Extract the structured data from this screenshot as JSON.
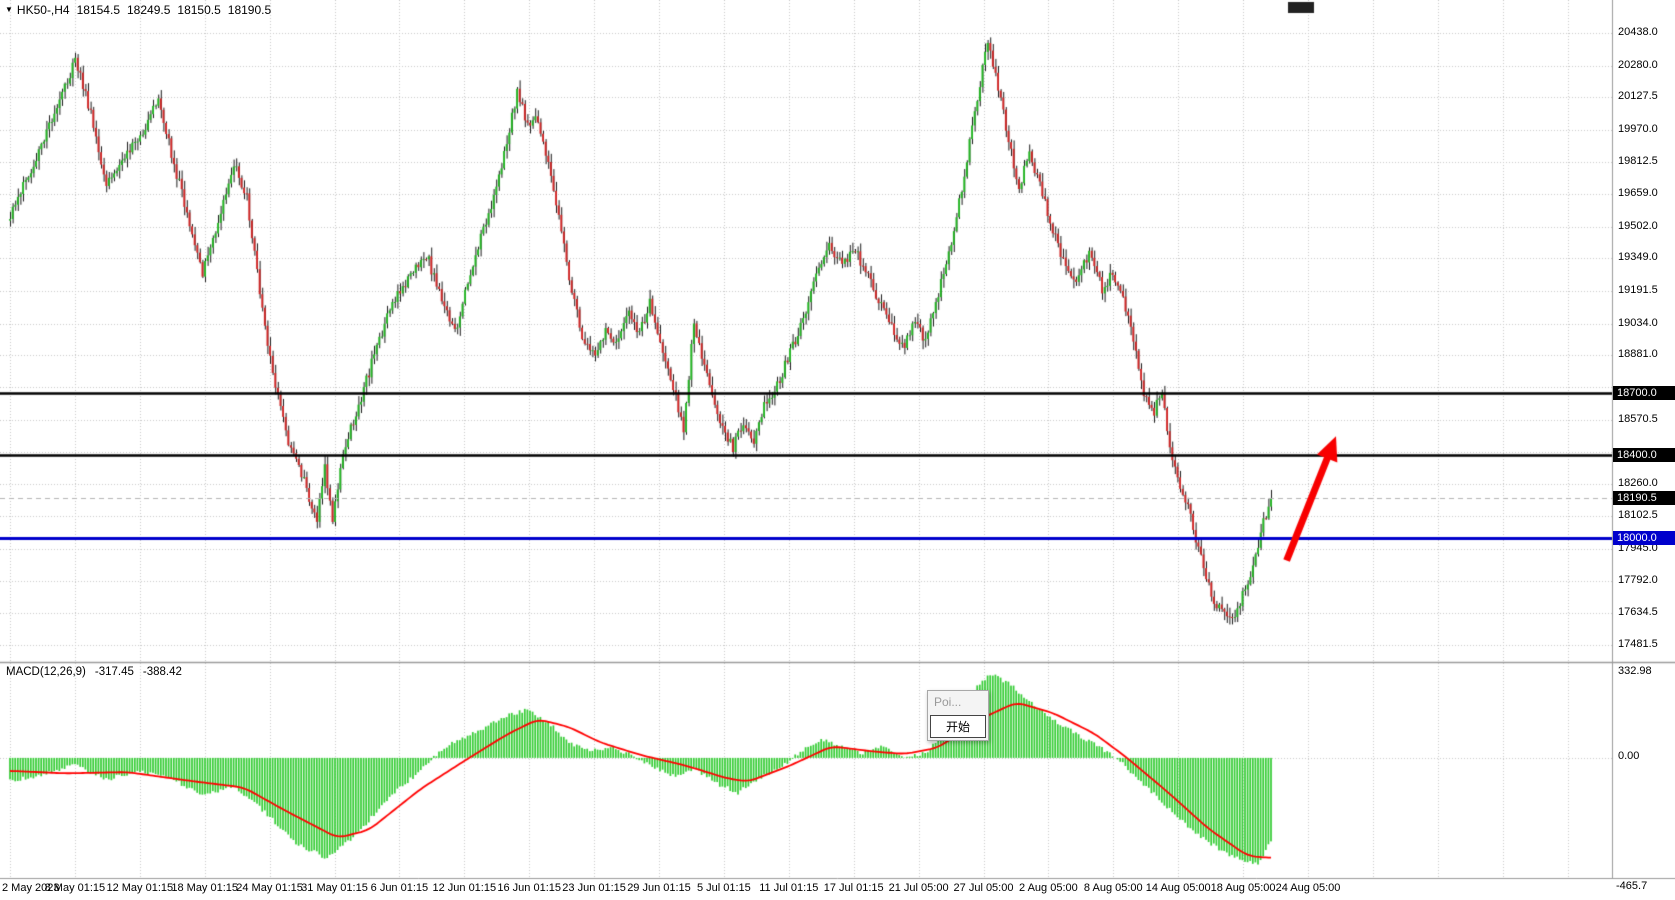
{
  "header": {
    "dropdown_icon": "▼",
    "title": "HK50-,H4",
    "open": "18154.5",
    "high": "18249.5",
    "low": "18150.5",
    "close": "18190.5"
  },
  "popup": {
    "line1": "Poi...",
    "button": "开始"
  },
  "macd_panel": {
    "label": "MACD(12,26,9)",
    "main_value": "-317.45",
    "signal_value": "-388.42",
    "scale": [
      "332.98",
      "0.00",
      "-465.7"
    ]
  },
  "price_axis": {
    "labels": [
      {
        "p": 20438.0,
        "t": "20438.0"
      },
      {
        "p": 20280.0,
        "t": "20280.0"
      },
      {
        "p": 20127.5,
        "t": "20127.5"
      },
      {
        "p": 19970.0,
        "t": "19970.0"
      },
      {
        "p": 19812.5,
        "t": "19812.5"
      },
      {
        "p": 19659.0,
        "t": "19659.0"
      },
      {
        "p": 19502.0,
        "t": "19502.0"
      },
      {
        "p": 19349.0,
        "t": "19349.0"
      },
      {
        "p": 19191.5,
        "t": "19191.5"
      },
      {
        "p": 19034.0,
        "t": "19034.0"
      },
      {
        "p": 18881.0,
        "t": "18881.0"
      },
      {
        "p": 18570.5,
        "t": "18570.5"
      },
      {
        "p": 18260.0,
        "t": "18260.0"
      },
      {
        "p": 18102.5,
        "t": "18102.5"
      },
      {
        "p": 17945.0,
        "t": "17945.0"
      },
      {
        "p": 17792.0,
        "t": "17792.0"
      },
      {
        "p": 17634.5,
        "t": "17634.5"
      },
      {
        "p": 17481.5,
        "t": "17481.5"
      }
    ],
    "hidden_gridlines": [
      18728.0,
      18413.0
    ],
    "boxes": [
      {
        "text": "18700.0",
        "price": 18700.0,
        "bg": "#000000",
        "fg": "#ffffff"
      },
      {
        "text": "18400.0",
        "price": 18400.0,
        "bg": "#000000",
        "fg": "#ffffff"
      },
      {
        "text": "18190.5",
        "price": 18190.5,
        "bg": "#000000",
        "fg": "#ffffff"
      },
      {
        "text": "18000.0",
        "price": 18000.0,
        "bg": "#0000cc",
        "fg": "#ffffff"
      }
    ]
  },
  "time_axis": {
    "labels": [
      "2 May 2023",
      "8 May 01:15",
      "12 May 01:15",
      "18 May 01:15",
      "24 May 01:15",
      "31 May 01:15",
      "6 Jun 01:15",
      "12 Jun 01:15",
      "16 Jun 01:15",
      "23 Jun 01:15",
      "29 Jun 01:15",
      "5 Jul 01:15",
      "11 Jul 01:15",
      "17 Jul 01:15",
      "21 Jul 05:00",
      "27 Jul 05:00",
      "2 Aug 05:00",
      "8 Aug 05:00",
      "14 Aug 05:00",
      "18 Aug 05:00",
      "24 Aug 05:00"
    ]
  },
  "chart_data": [
    {
      "type": "candlestick",
      "title": "HK50- H4 candlestick chart, 2 May 2023 - 24 Aug 2023",
      "symbol": "HK50-",
      "period": "H4",
      "bars_total": 486,
      "ylim_visible": [
        17481.5,
        20438.0
      ],
      "ohlc_current": {
        "open": 18154.5,
        "high": 18249.5,
        "low": 18150.5,
        "close": 18190.5
      },
      "up_color": "#22b422",
      "down_color": "#cf2525",
      "wick_color": "#1a1a1a",
      "grid": true,
      "chart_shift_marker": true,
      "close_waypoints": [
        [
          0,
          19560
        ],
        [
          9,
          19800
        ],
        [
          16,
          20010
        ],
        [
          25,
          20310
        ],
        [
          31,
          20050
        ],
        [
          37,
          19700
        ],
        [
          43,
          19840
        ],
        [
          51,
          19960
        ],
        [
          57,
          20140
        ],
        [
          63,
          19800
        ],
        [
          70,
          19480
        ],
        [
          74,
          19270
        ],
        [
          80,
          19540
        ],
        [
          86,
          19800
        ],
        [
          91,
          19640
        ],
        [
          96,
          19180
        ],
        [
          101,
          18780
        ],
        [
          107,
          18460
        ],
        [
          113,
          18270
        ],
        [
          118,
          18090
        ],
        [
          121,
          18330
        ],
        [
          124,
          18100
        ],
        [
          129,
          18460
        ],
        [
          135,
          18680
        ],
        [
          141,
          18920
        ],
        [
          147,
          19130
        ],
        [
          154,
          19270
        ],
        [
          160,
          19370
        ],
        [
          166,
          19150
        ],
        [
          171,
          18990
        ],
        [
          177,
          19290
        ],
        [
          184,
          19560
        ],
        [
          190,
          19850
        ],
        [
          195,
          20160
        ],
        [
          199,
          19990
        ],
        [
          202,
          20050
        ],
        [
          206,
          19860
        ],
        [
          211,
          19540
        ],
        [
          216,
          19200
        ],
        [
          220,
          18960
        ],
        [
          225,
          18870
        ],
        [
          229,
          19010
        ],
        [
          233,
          18930
        ],
        [
          238,
          19090
        ],
        [
          242,
          18990
        ],
        [
          246,
          19140
        ],
        [
          251,
          18910
        ],
        [
          255,
          18720
        ],
        [
          259,
          18520
        ],
        [
          263,
          19050
        ],
        [
          266,
          18880
        ],
        [
          270,
          18700
        ],
        [
          274,
          18520
        ],
        [
          278,
          18430
        ],
        [
          282,
          18560
        ],
        [
          286,
          18450
        ],
        [
          290,
          18640
        ],
        [
          295,
          18740
        ],
        [
          300,
          18890
        ],
        [
          305,
          19050
        ],
        [
          310,
          19280
        ],
        [
          315,
          19420
        ],
        [
          320,
          19310
        ],
        [
          325,
          19390
        ],
        [
          329,
          19280
        ],
        [
          334,
          19150
        ],
        [
          340,
          19000
        ],
        [
          344,
          18920
        ],
        [
          348,
          19050
        ],
        [
          352,
          18950
        ],
        [
          356,
          19120
        ],
        [
          361,
          19380
        ],
        [
          366,
          19680
        ],
        [
          371,
          20050
        ],
        [
          376,
          20400
        ],
        [
          380,
          20180
        ],
        [
          384,
          19920
        ],
        [
          388,
          19700
        ],
        [
          392,
          19850
        ],
        [
          396,
          19720
        ],
        [
          400,
          19520
        ],
        [
          405,
          19340
        ],
        [
          410,
          19250
        ],
        [
          415,
          19380
        ],
        [
          420,
          19200
        ],
        [
          424,
          19280
        ],
        [
          428,
          19150
        ],
        [
          432,
          18950
        ],
        [
          436,
          18700
        ],
        [
          440,
          18600
        ],
        [
          443,
          18720
        ],
        [
          446,
          18450
        ],
        [
          450,
          18250
        ],
        [
          454,
          18100
        ],
        [
          458,
          17900
        ],
        [
          462,
          17720
        ],
        [
          466,
          17640
        ],
        [
          470,
          17600
        ],
        [
          475,
          17750
        ],
        [
          479,
          17900
        ],
        [
          482,
          18080
        ],
        [
          485,
          18190.5
        ]
      ],
      "hlines": [
        {
          "price": 18700.0,
          "color": "#000000",
          "width": 2.4,
          "style": "solid",
          "note": "resistance line"
        },
        {
          "price": 18400.0,
          "color": "#000000",
          "width": 2.4,
          "style": "solid",
          "note": "resistance line"
        },
        {
          "price": 18000.0,
          "color": "#0000cc",
          "width": 3,
          "style": "solid",
          "note": "support line"
        },
        {
          "price": 18190.5,
          "color": "#b4b4b4",
          "width": 1,
          "style": "dashed",
          "note": "current price"
        }
      ],
      "annotations": [
        {
          "type": "arrow",
          "from": {
            "bar": 491,
            "price": 17890
          },
          "to": {
            "bar": 510,
            "price": 18490
          },
          "color": "#f80000",
          "note": "bullish projection arrow toward 18400"
        }
      ]
    },
    {
      "type": "bar",
      "title": "MACD(12,26,9)",
      "ylim": [
        -465.7,
        332.98
      ],
      "zero_line": 0,
      "histogram_color": "#33cc33",
      "signal_color": "#ff0000",
      "current_main": -317.45,
      "current_signal": -388.42,
      "histogram_waypoints": [
        [
          0,
          -90
        ],
        [
          13,
          -65
        ],
        [
          25,
          -25
        ],
        [
          37,
          -85
        ],
        [
          49,
          -50
        ],
        [
          61,
          -70
        ],
        [
          74,
          -150
        ],
        [
          86,
          -110
        ],
        [
          98,
          -210
        ],
        [
          110,
          -330
        ],
        [
          122,
          -390
        ],
        [
          134,
          -290
        ],
        [
          146,
          -150
        ],
        [
          158,
          -50
        ],
        [
          167,
          40
        ],
        [
          179,
          100
        ],
        [
          191,
          165
        ],
        [
          199,
          185
        ],
        [
          207,
          140
        ],
        [
          215,
          60
        ],
        [
          223,
          25
        ],
        [
          231,
          45
        ],
        [
          239,
          10
        ],
        [
          247,
          -35
        ],
        [
          255,
          -70
        ],
        [
          263,
          -40
        ],
        [
          272,
          -100
        ],
        [
          280,
          -135
        ],
        [
          288,
          -80
        ],
        [
          296,
          -40
        ],
        [
          304,
          25
        ],
        [
          312,
          75
        ],
        [
          320,
          40
        ],
        [
          328,
          20
        ],
        [
          336,
          45
        ],
        [
          344,
          -5
        ],
        [
          353,
          25
        ],
        [
          361,
          120
        ],
        [
          369,
          245
        ],
        [
          377,
          325
        ],
        [
          385,
          285
        ],
        [
          393,
          210
        ],
        [
          401,
          150
        ],
        [
          409,
          100
        ],
        [
          417,
          55
        ],
        [
          425,
          5
        ],
        [
          433,
          -70
        ],
        [
          441,
          -150
        ],
        [
          449,
          -230
        ],
        [
          458,
          -305
        ],
        [
          466,
          -360
        ],
        [
          474,
          -400
        ],
        [
          480,
          -415
        ],
        [
          485,
          -317.45
        ]
      ],
      "signal_waypoints": [
        [
          0,
          -50
        ],
        [
          21,
          -60
        ],
        [
          45,
          -55
        ],
        [
          70,
          -90
        ],
        [
          90,
          -115
        ],
        [
          106,
          -205
        ],
        [
          126,
          -310
        ],
        [
          138,
          -280
        ],
        [
          158,
          -120
        ],
        [
          175,
          -10
        ],
        [
          191,
          90
        ],
        [
          203,
          150
        ],
        [
          215,
          120
        ],
        [
          227,
          60
        ],
        [
          243,
          10
        ],
        [
          260,
          -30
        ],
        [
          276,
          -80
        ],
        [
          284,
          -92
        ],
        [
          300,
          -30
        ],
        [
          316,
          45
        ],
        [
          332,
          25
        ],
        [
          344,
          15
        ],
        [
          357,
          40
        ],
        [
          373,
          150
        ],
        [
          387,
          215
        ],
        [
          401,
          175
        ],
        [
          417,
          95
        ],
        [
          429,
          5
        ],
        [
          445,
          -130
        ],
        [
          461,
          -275
        ],
        [
          476,
          -380
        ],
        [
          485,
          -388.42
        ]
      ]
    }
  ]
}
